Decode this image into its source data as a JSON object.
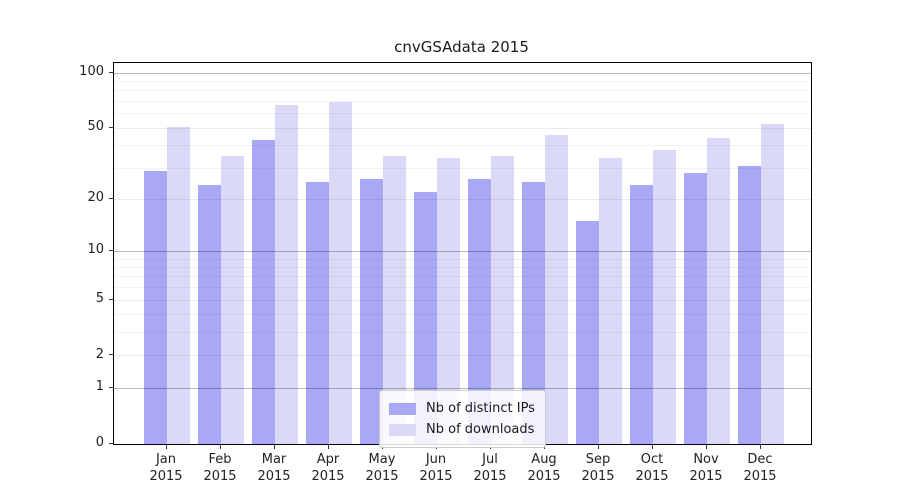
{
  "title": "cnvGSAdata 2015",
  "chart_data": {
    "type": "bar",
    "categories": [
      "Jan",
      "Feb",
      "Mar",
      "Apr",
      "May",
      "Jun",
      "Jul",
      "Aug",
      "Sep",
      "Oct",
      "Nov",
      "Dec"
    ],
    "category_year_line": "2015",
    "series": [
      {
        "name": "Nb of distinct IPs",
        "color": "#a8a8f5",
        "values": [
          29,
          24,
          43,
          25,
          26,
          22,
          26,
          25,
          15,
          24,
          28,
          31
        ]
      },
      {
        "name": "Nb of downloads",
        "color": "#dadaf8",
        "values": [
          51,
          35,
          67,
          70,
          35,
          34,
          35,
          46,
          34,
          38,
          44,
          53
        ]
      }
    ],
    "y_ticks": [
      "100",
      "50",
      "20",
      "10",
      "5",
      "2",
      "1",
      "0"
    ],
    "y_tick_values": [
      100,
      50,
      20,
      10,
      5,
      2,
      1,
      0
    ],
    "y_scale": "log10(1+v)",
    "ylim": [
      0,
      113
    ],
    "grid": "horizontal, minor lines at 2-9 and 20-90, emphasized decade lines at 1/10/100",
    "legend_position": "lower-center",
    "xlabel": "",
    "ylabel": ""
  }
}
